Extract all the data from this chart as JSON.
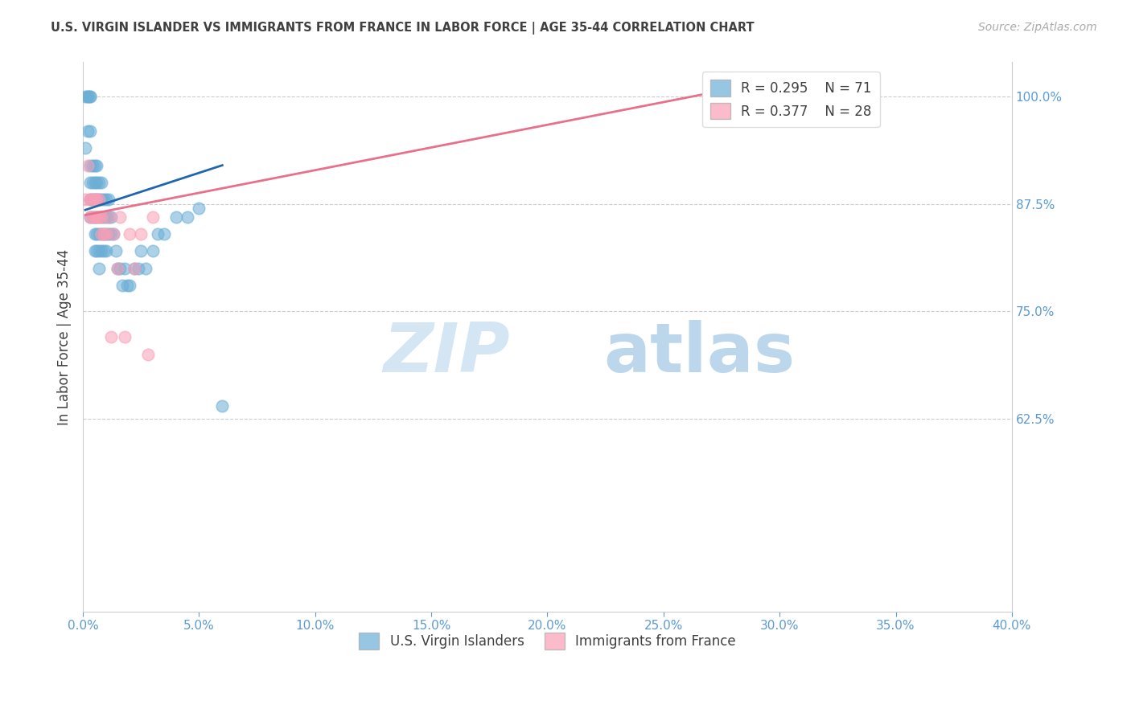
{
  "title": "U.S. VIRGIN ISLANDER VS IMMIGRANTS FROM FRANCE IN LABOR FORCE | AGE 35-44 CORRELATION CHART",
  "source": "Source: ZipAtlas.com",
  "ylabel": "In Labor Force | Age 35-44",
  "ylabel_right_ticks": [
    "100.0%",
    "87.5%",
    "75.0%",
    "62.5%"
  ],
  "ylabel_right_values": [
    1.0,
    0.875,
    0.75,
    0.625
  ],
  "legend_blue_r": "0.295",
  "legend_blue_n": "71",
  "legend_pink_r": "0.377",
  "legend_pink_n": "28",
  "legend_label_blue": "U.S. Virgin Islanders",
  "legend_label_pink": "Immigrants from France",
  "blue_color": "#6baed6",
  "pink_color": "#fa9fb5",
  "blue_line_color": "#2166ac",
  "pink_line_color": "#e8708a",
  "watermark_zip": "ZIP",
  "watermark_atlas": "atlas",
  "xlim": [
    0.0,
    0.4
  ],
  "ylim": [
    0.4,
    1.04
  ],
  "grid_color": "#cccccc",
  "title_color": "#404040",
  "axis_color": "#5b9bd5",
  "bg_color": "#ffffff",
  "blue_scatter_x": [
    0.001,
    0.001,
    0.002,
    0.002,
    0.002,
    0.003,
    0.003,
    0.003,
    0.003,
    0.003,
    0.003,
    0.003,
    0.004,
    0.004,
    0.004,
    0.004,
    0.005,
    0.005,
    0.005,
    0.005,
    0.005,
    0.005,
    0.006,
    0.006,
    0.006,
    0.006,
    0.006,
    0.006,
    0.007,
    0.007,
    0.007,
    0.007,
    0.007,
    0.007,
    0.008,
    0.008,
    0.008,
    0.008,
    0.008,
    0.009,
    0.009,
    0.009,
    0.009,
    0.01,
    0.01,
    0.01,
    0.01,
    0.011,
    0.011,
    0.011,
    0.012,
    0.012,
    0.013,
    0.014,
    0.015,
    0.016,
    0.017,
    0.018,
    0.019,
    0.02,
    0.022,
    0.024,
    0.025,
    0.027,
    0.03,
    0.032,
    0.035,
    0.04,
    0.045,
    0.05,
    0.06
  ],
  "blue_scatter_y": [
    1.0,
    0.94,
    1.0,
    1.0,
    0.96,
    1.0,
    1.0,
    0.96,
    0.92,
    0.9,
    0.88,
    0.86,
    0.92,
    0.9,
    0.88,
    0.86,
    0.92,
    0.9,
    0.88,
    0.86,
    0.84,
    0.82,
    0.92,
    0.9,
    0.88,
    0.86,
    0.84,
    0.82,
    0.9,
    0.88,
    0.86,
    0.84,
    0.82,
    0.8,
    0.9,
    0.88,
    0.86,
    0.84,
    0.82,
    0.88,
    0.86,
    0.84,
    0.82,
    0.88,
    0.86,
    0.84,
    0.82,
    0.88,
    0.86,
    0.84,
    0.86,
    0.84,
    0.84,
    0.82,
    0.8,
    0.8,
    0.78,
    0.8,
    0.78,
    0.78,
    0.8,
    0.8,
    0.82,
    0.8,
    0.82,
    0.84,
    0.84,
    0.86,
    0.86,
    0.87,
    0.64
  ],
  "pink_scatter_x": [
    0.001,
    0.002,
    0.003,
    0.003,
    0.004,
    0.004,
    0.005,
    0.005,
    0.006,
    0.006,
    0.007,
    0.007,
    0.008,
    0.008,
    0.009,
    0.01,
    0.011,
    0.012,
    0.013,
    0.015,
    0.016,
    0.018,
    0.02,
    0.022,
    0.025,
    0.028,
    0.03,
    0.3
  ],
  "pink_scatter_y": [
    0.88,
    0.92,
    0.88,
    0.86,
    0.88,
    0.86,
    0.88,
    0.86,
    0.88,
    0.86,
    0.88,
    0.86,
    0.86,
    0.84,
    0.84,
    0.84,
    0.86,
    0.72,
    0.84,
    0.8,
    0.86,
    0.72,
    0.84,
    0.8,
    0.84,
    0.7,
    0.86,
    1.0
  ],
  "blue_trend_x": [
    0.001,
    0.06
  ],
  "blue_trend_y": [
    0.868,
    0.92
  ],
  "pink_trend_x": [
    0.001,
    0.3
  ],
  "pink_trend_y": [
    0.862,
    1.02
  ]
}
